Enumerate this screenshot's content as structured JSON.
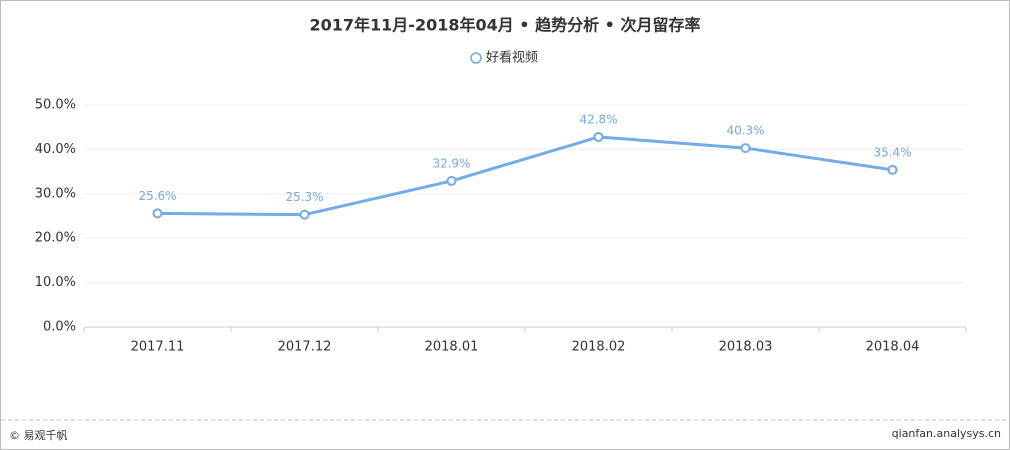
{
  "chart_data": {
    "type": "line",
    "title": "2017年11月-2018年04月 • 趋势分析 • 次月留存率",
    "categories": [
      "2017.11",
      "2017.12",
      "2018.01",
      "2018.02",
      "2018.03",
      "2018.04"
    ],
    "series": [
      {
        "name": "好看视频",
        "color": "#73aae8",
        "values": [
          25.6,
          25.3,
          32.9,
          42.8,
          40.3,
          35.4
        ],
        "value_labels": [
          "25.6%",
          "25.3%",
          "32.9%",
          "42.8%",
          "40.3%",
          "35.4%"
        ]
      }
    ],
    "ylim": [
      0,
      50
    ],
    "yticks": [
      {
        "value": 0,
        "label": "0.0%"
      },
      {
        "value": 10,
        "label": "10.0%"
      },
      {
        "value": 20,
        "label": "20.0%"
      },
      {
        "value": 30,
        "label": "30.0%"
      },
      {
        "value": 40,
        "label": "40.0%"
      },
      {
        "value": 50,
        "label": "50.0%"
      }
    ],
    "grid": true
  },
  "footer": {
    "left": "© 易观千帆",
    "right": "qianfan.analysys.cn"
  }
}
